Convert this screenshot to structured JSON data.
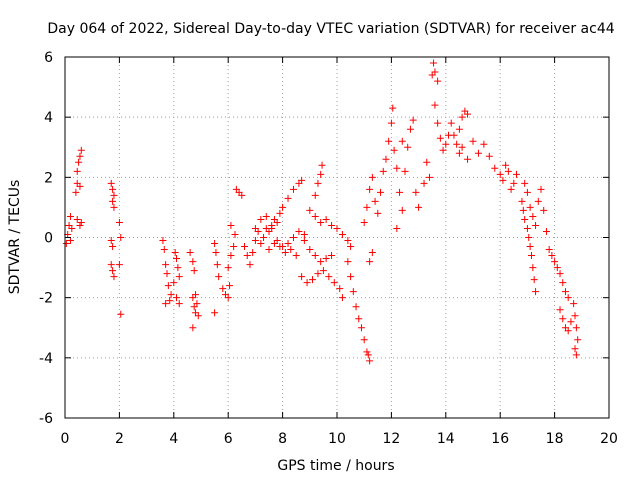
{
  "chart_data": {
    "type": "scatter",
    "title": "Day 064 of 2022, Sidereal Day-to-day VTEC variation (SDTVAR) for receiver ac44",
    "xlabel": "GPS time / hours",
    "ylabel": "SDTVAR / TECUs",
    "xlim": [
      0,
      20
    ],
    "ylim": [
      -6,
      6
    ],
    "xticks": [
      0,
      2,
      4,
      6,
      8,
      10,
      12,
      14,
      16,
      18,
      20
    ],
    "yticks": [
      -6,
      -4,
      -2,
      0,
      2,
      4,
      6
    ],
    "grid": true,
    "marker": "+",
    "color": "#ff0000",
    "series": [
      {
        "name": "SDTVAR",
        "points": [
          [
            0.05,
            -0.2
          ],
          [
            0.1,
            0.1
          ],
          [
            0.15,
            0.4
          ],
          [
            0.2,
            0.7
          ],
          [
            0.25,
            0.3
          ],
          [
            0.2,
            -0.1
          ],
          [
            0.4,
            1.5
          ],
          [
            0.45,
            1.8
          ],
          [
            0.45,
            2.2
          ],
          [
            0.5,
            2.5
          ],
          [
            0.55,
            2.7
          ],
          [
            0.6,
            2.9
          ],
          [
            0.55,
            1.7
          ],
          [
            0.45,
            0.6
          ],
          [
            0.55,
            0.4
          ],
          [
            0.6,
            0.5
          ],
          [
            1.7,
            1.8
          ],
          [
            1.75,
            1.6
          ],
          [
            1.8,
            1.4
          ],
          [
            1.75,
            1.2
          ],
          [
            1.8,
            1.0
          ],
          [
            1.7,
            -0.1
          ],
          [
            1.75,
            -0.3
          ],
          [
            1.7,
            -0.9
          ],
          [
            1.75,
            -1.1
          ],
          [
            1.8,
            -1.3
          ],
          [
            2.0,
            0.5
          ],
          [
            2.05,
            0.0
          ],
          [
            2.0,
            -0.9
          ],
          [
            2.05,
            -2.55
          ],
          [
            3.6,
            -0.1
          ],
          [
            3.65,
            -0.4
          ],
          [
            3.7,
            -0.9
          ],
          [
            3.75,
            -1.2
          ],
          [
            3.8,
            -1.6
          ],
          [
            3.7,
            -2.2
          ],
          [
            3.85,
            -2.1
          ],
          [
            3.9,
            -1.9
          ],
          [
            4.0,
            -1.5
          ],
          [
            4.1,
            -0.7
          ],
          [
            4.15,
            -1.0
          ],
          [
            4.2,
            -1.3
          ],
          [
            4.1,
            -2.0
          ],
          [
            4.2,
            -2.2
          ],
          [
            4.05,
            -0.5
          ],
          [
            4.6,
            -0.5
          ],
          [
            4.7,
            -0.8
          ],
          [
            4.75,
            -1.1
          ],
          [
            4.7,
            -2.0
          ],
          [
            4.75,
            -2.3
          ],
          [
            4.8,
            -2.5
          ],
          [
            4.85,
            -2.2
          ],
          [
            4.8,
            -1.9
          ],
          [
            4.9,
            -2.6
          ],
          [
            4.7,
            -3.0
          ],
          [
            5.5,
            -0.2
          ],
          [
            5.55,
            -0.5
          ],
          [
            5.6,
            -0.9
          ],
          [
            5.65,
            -1.3
          ],
          [
            5.5,
            -2.5
          ],
          [
            5.8,
            -1.7
          ],
          [
            5.9,
            -1.9
          ],
          [
            6.0,
            -2.0
          ],
          [
            6.05,
            -1.6
          ],
          [
            6.0,
            -1.0
          ],
          [
            6.1,
            -0.6
          ],
          [
            6.2,
            -0.3
          ],
          [
            6.25,
            0.1
          ],
          [
            6.1,
            0.4
          ],
          [
            6.3,
            1.6
          ],
          [
            6.4,
            1.5
          ],
          [
            6.5,
            1.4
          ],
          [
            6.6,
            -0.3
          ],
          [
            6.7,
            -0.6
          ],
          [
            6.8,
            -0.9
          ],
          [
            6.9,
            -0.5
          ],
          [
            7.0,
            -0.1
          ],
          [
            7.1,
            0.2
          ],
          [
            7.2,
            -0.2
          ],
          [
            7.3,
            0.0
          ],
          [
            7.4,
            0.3
          ],
          [
            7.5,
            0.2
          ],
          [
            7.6,
            0.4
          ],
          [
            7.7,
            0.6
          ],
          [
            7.8,
            0.5
          ],
          [
            7.9,
            0.8
          ],
          [
            8.0,
            1.0
          ],
          [
            8.2,
            1.3
          ],
          [
            8.4,
            1.6
          ],
          [
            8.6,
            1.8
          ],
          [
            8.7,
            1.9
          ],
          [
            7.0,
            0.3
          ],
          [
            7.2,
            0.6
          ],
          [
            7.4,
            0.7
          ],
          [
            7.6,
            0.3
          ],
          [
            7.8,
            -0.1
          ],
          [
            8.0,
            -0.3
          ],
          [
            8.2,
            -0.2
          ],
          [
            8.4,
            0.0
          ],
          [
            8.6,
            0.2
          ],
          [
            8.8,
            0.1
          ],
          [
            7.5,
            -0.4
          ],
          [
            7.7,
            -0.2
          ],
          [
            7.9,
            -0.3
          ],
          [
            8.1,
            -0.5
          ],
          [
            8.3,
            -0.4
          ],
          [
            8.5,
            -0.6
          ],
          [
            8.7,
            -1.3
          ],
          [
            8.9,
            -1.5
          ],
          [
            9.1,
            -1.4
          ],
          [
            9.3,
            -1.2
          ],
          [
            9.5,
            -1.1
          ],
          [
            9.7,
            -1.3
          ],
          [
            9.9,
            -1.5
          ],
          [
            10.1,
            -1.7
          ],
          [
            10.2,
            -2.0
          ],
          [
            8.8,
            -0.1
          ],
          [
            9.0,
            -0.4
          ],
          [
            9.2,
            -0.6
          ],
          [
            9.4,
            -0.8
          ],
          [
            9.6,
            -0.7
          ],
          [
            9.8,
            -0.6
          ],
          [
            9.0,
            0.9
          ],
          [
            9.2,
            1.4
          ],
          [
            9.3,
            1.8
          ],
          [
            9.4,
            2.1
          ],
          [
            9.45,
            2.4
          ],
          [
            9.2,
            0.7
          ],
          [
            9.4,
            0.5
          ],
          [
            9.6,
            0.6
          ],
          [
            9.8,
            0.4
          ],
          [
            10.0,
            0.3
          ],
          [
            10.2,
            0.1
          ],
          [
            10.4,
            -0.1
          ],
          [
            10.5,
            -0.3
          ],
          [
            10.4,
            -0.8
          ],
          [
            10.5,
            -1.3
          ],
          [
            10.6,
            -1.8
          ],
          [
            10.7,
            -2.3
          ],
          [
            10.8,
            -2.7
          ],
          [
            10.9,
            -3.0
          ],
          [
            11.0,
            -3.4
          ],
          [
            11.1,
            -3.8
          ],
          [
            11.2,
            -4.1
          ],
          [
            11.15,
            -3.9
          ],
          [
            11.3,
            -0.5
          ],
          [
            11.2,
            -0.8
          ],
          [
            11.0,
            0.5
          ],
          [
            11.1,
            1.0
          ],
          [
            11.2,
            1.6
          ],
          [
            11.3,
            2.0
          ],
          [
            11.4,
            1.2
          ],
          [
            11.5,
            0.8
          ],
          [
            11.6,
            1.5
          ],
          [
            11.7,
            2.2
          ],
          [
            11.8,
            2.6
          ],
          [
            11.9,
            3.2
          ],
          [
            12.0,
            3.8
          ],
          [
            12.05,
            4.3
          ],
          [
            12.1,
            2.9
          ],
          [
            12.2,
            2.3
          ],
          [
            12.3,
            1.5
          ],
          [
            12.4,
            0.9
          ],
          [
            12.2,
            0.3
          ],
          [
            12.4,
            3.2
          ],
          [
            12.5,
            2.2
          ],
          [
            12.6,
            3.0
          ],
          [
            12.7,
            3.6
          ],
          [
            12.8,
            3.9
          ],
          [
            12.9,
            1.5
          ],
          [
            13.0,
            1.0
          ],
          [
            13.2,
            1.8
          ],
          [
            13.3,
            2.5
          ],
          [
            13.4,
            2.0
          ],
          [
            13.5,
            5.4
          ],
          [
            13.55,
            5.8
          ],
          [
            13.6,
            5.5
          ],
          [
            13.7,
            5.2
          ],
          [
            13.6,
            4.4
          ],
          [
            13.7,
            3.8
          ],
          [
            13.8,
            3.3
          ],
          [
            13.9,
            2.9
          ],
          [
            14.0,
            3.1
          ],
          [
            14.1,
            3.4
          ],
          [
            14.2,
            3.8
          ],
          [
            14.3,
            3.4
          ],
          [
            14.4,
            3.1
          ],
          [
            14.5,
            3.6
          ],
          [
            14.6,
            4.0
          ],
          [
            14.7,
            4.2
          ],
          [
            14.8,
            4.1
          ],
          [
            14.5,
            2.8
          ],
          [
            14.6,
            3.0
          ],
          [
            14.8,
            2.6
          ],
          [
            15.0,
            3.2
          ],
          [
            15.2,
            2.8
          ],
          [
            15.4,
            3.1
          ],
          [
            15.6,
            2.7
          ],
          [
            15.8,
            2.3
          ],
          [
            16.0,
            2.1
          ],
          [
            16.1,
            1.9
          ],
          [
            16.2,
            2.4
          ],
          [
            16.3,
            2.2
          ],
          [
            16.4,
            1.6
          ],
          [
            16.5,
            1.8
          ],
          [
            16.6,
            2.1
          ],
          [
            16.8,
            1.2
          ],
          [
            16.85,
            0.9
          ],
          [
            16.9,
            0.6
          ],
          [
            17.0,
            0.3
          ],
          [
            17.05,
            0.0
          ],
          [
            17.1,
            -0.3
          ],
          [
            17.15,
            -0.6
          ],
          [
            17.2,
            -1.0
          ],
          [
            17.25,
            -1.4
          ],
          [
            17.3,
            -1.8
          ],
          [
            16.9,
            1.8
          ],
          [
            17.0,
            1.5
          ],
          [
            17.1,
            1.0
          ],
          [
            17.2,
            0.7
          ],
          [
            17.3,
            0.4
          ],
          [
            17.4,
            1.2
          ],
          [
            17.5,
            1.6
          ],
          [
            17.6,
            0.9
          ],
          [
            17.7,
            0.2
          ],
          [
            17.8,
            -0.4
          ],
          [
            17.9,
            -0.6
          ],
          [
            18.0,
            -0.8
          ],
          [
            18.1,
            -1.0
          ],
          [
            18.2,
            -1.2
          ],
          [
            18.3,
            -1.5
          ],
          [
            18.4,
            -1.8
          ],
          [
            18.5,
            -2.0
          ],
          [
            18.2,
            -2.4
          ],
          [
            18.3,
            -2.7
          ],
          [
            18.4,
            -3.0
          ],
          [
            18.5,
            -3.1
          ],
          [
            18.6,
            -2.8
          ],
          [
            18.7,
            -2.2
          ],
          [
            18.75,
            -2.6
          ],
          [
            18.8,
            -3.0
          ],
          [
            18.85,
            -3.4
          ],
          [
            18.75,
            -3.7
          ],
          [
            18.8,
            -3.9
          ]
        ]
      }
    ]
  }
}
